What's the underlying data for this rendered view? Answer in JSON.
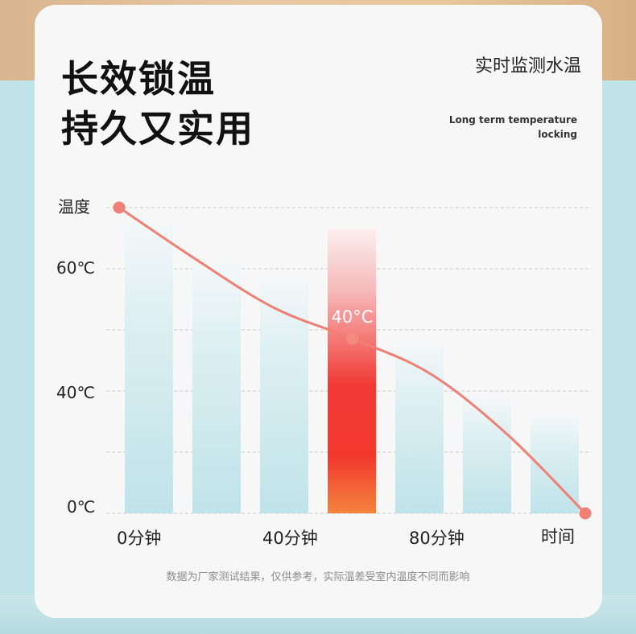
{
  "headline": {
    "line1": "长效锁温",
    "line2": "持久又实用"
  },
  "tagline": {
    "chinese": "实时监测水温",
    "english": "Long term temperature locking"
  },
  "chart_data": {
    "type": "line",
    "title": "",
    "ylabel": "温度",
    "xlabel": "时间",
    "y_ticks": [
      "60℃",
      "40℃",
      "0℃"
    ],
    "x_ticks": [
      "0分钟",
      "40分钟",
      "80分钟",
      "时间"
    ],
    "bars": {
      "count": 7,
      "highlighted_index": 3,
      "relative_heights": [
        0.95,
        0.82,
        0.77,
        0.93,
        0.55,
        0.38,
        0.32
      ]
    },
    "series": [
      {
        "x": [
          0,
          20,
          40,
          60,
          80,
          100,
          120
        ],
        "y": [
          70,
          58,
          47,
          40,
          32,
          18,
          0
        ]
      }
    ],
    "annotation": {
      "label": "40°C",
      "x": 60,
      "y": 40
    },
    "grid": true,
    "colors": {
      "line": "#f07f74",
      "bar": "#c3e4ea",
      "highlight_top": "#ffffff",
      "highlight_mid": "#f02f2f",
      "highlight_bottom": "#f47b3c"
    }
  },
  "disclaimer": "数据为厂家测试结果，仅供参考，实际温差受室内温度不同而影响"
}
